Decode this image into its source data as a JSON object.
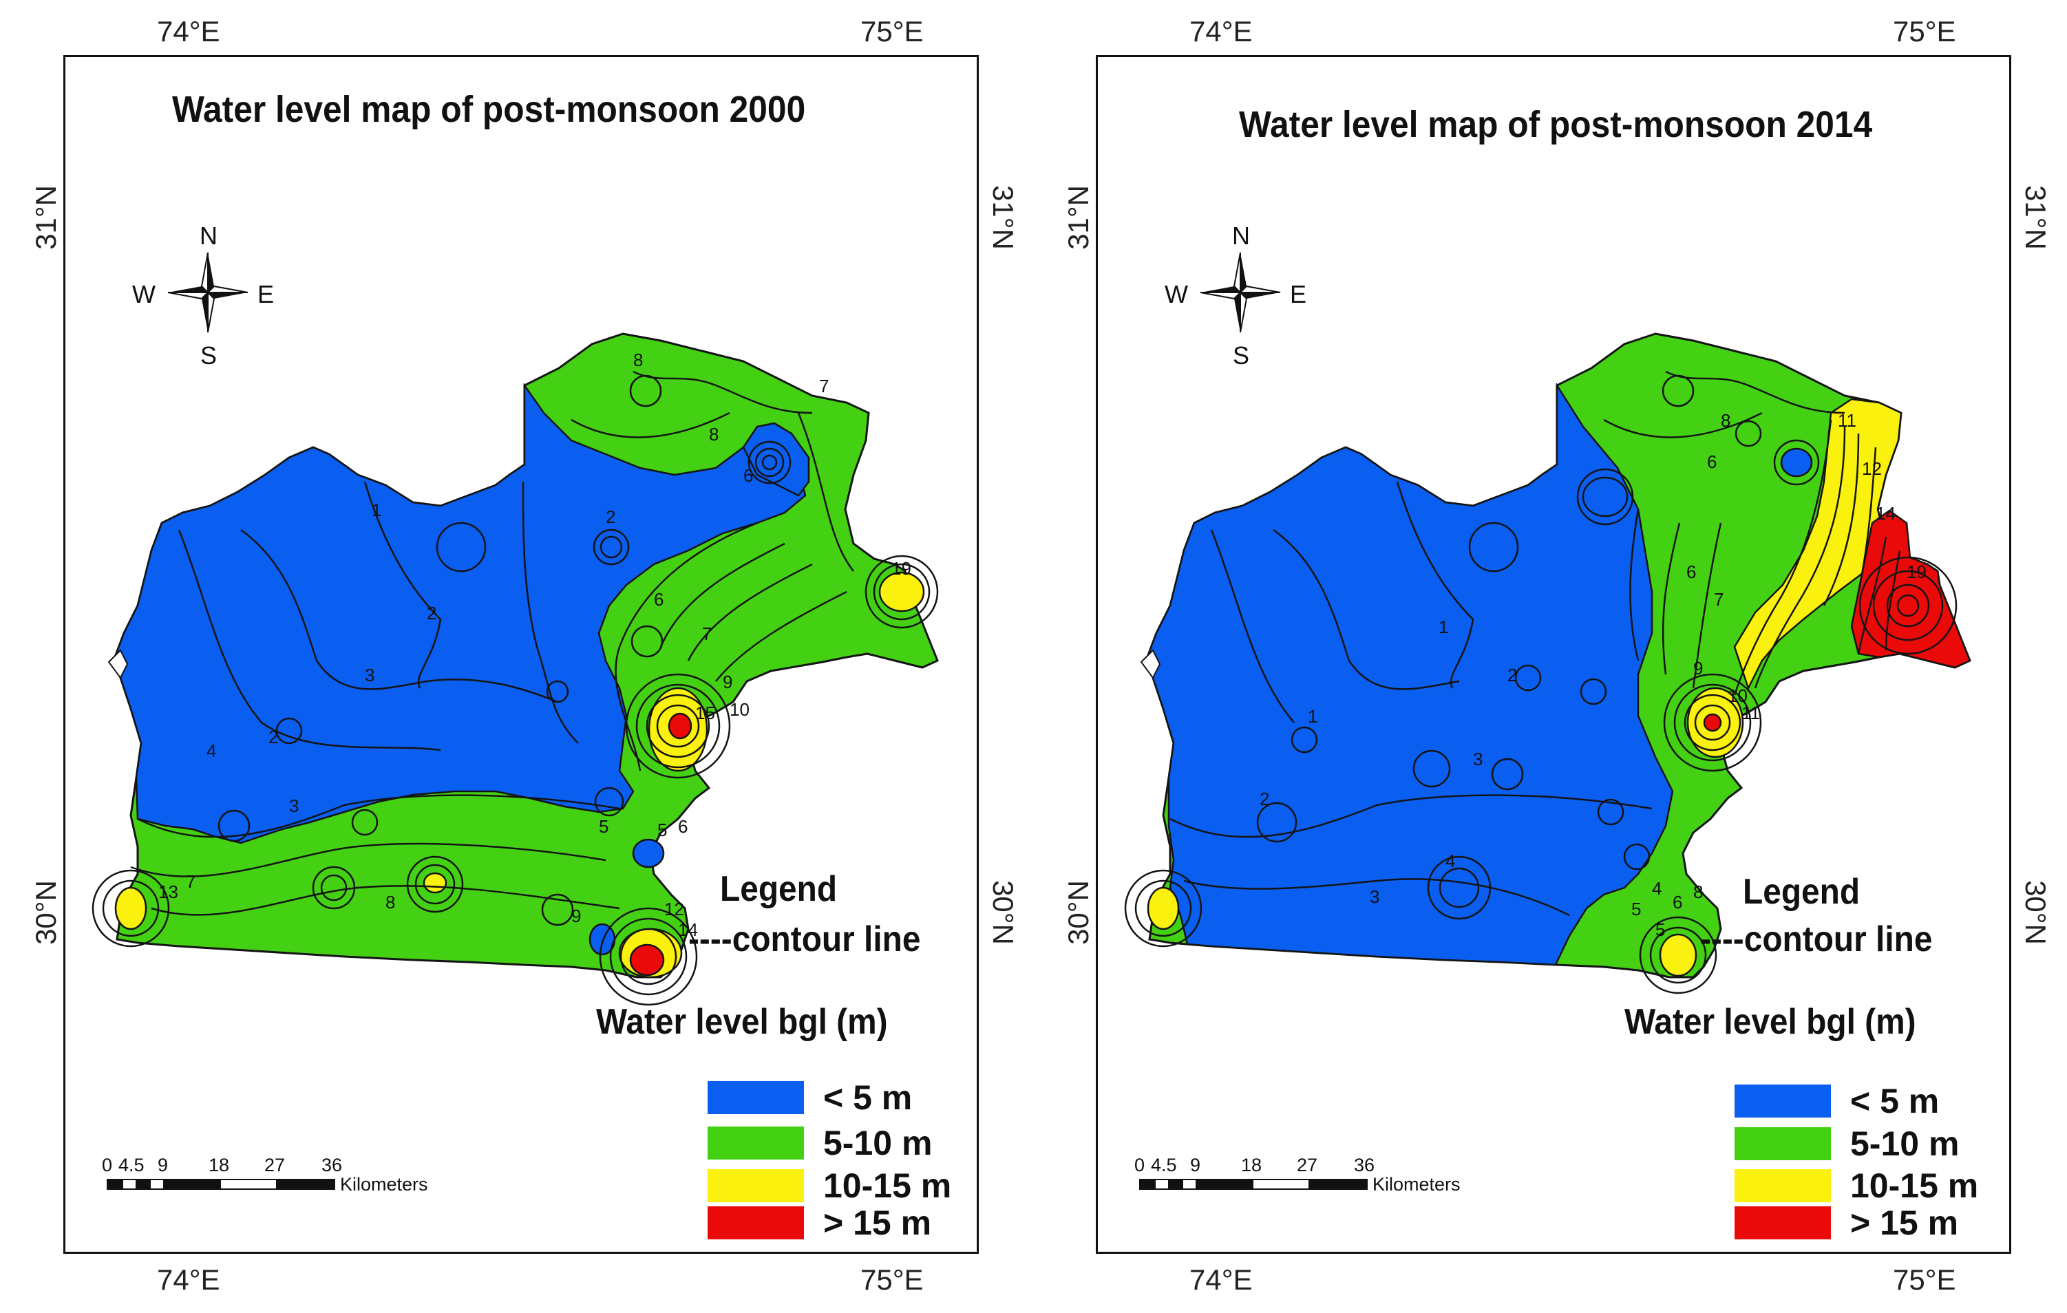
{
  "colors": {
    "lt5": "#0a5ef0",
    "5to10": "#44d114",
    "10to15": "#fbf10e",
    "gt15": "#ea0a0a",
    "contour": "#141414",
    "frame": "#111111"
  },
  "axis": {
    "lon_left": "74°E",
    "lon_right": "75°E",
    "lat_top": "31°N",
    "lat_bottom": "30°N"
  },
  "compass": {
    "n": "N",
    "s": "S",
    "e": "E",
    "w": "W"
  },
  "scale_bar": {
    "ticks": [
      "0",
      "4.5",
      "9",
      "18",
      "27",
      "36"
    ],
    "unit": "Kilometers"
  },
  "legend": {
    "heading": "Legend",
    "contour_label": "----contour line",
    "classes_title": "Water level bgl (m)",
    "classes": [
      {
        "label": "< 5 m",
        "color_key": "lt5"
      },
      {
        "label": "5-10 m",
        "color_key": "5to10"
      },
      {
        "label": "10-15 m",
        "color_key": "10to15"
      },
      {
        "label": "> 15 m",
        "color_key": "gt15"
      }
    ]
  },
  "maps": [
    {
      "title": "Water level map of post-monsoon 2000",
      "contour_labels": [
        "8",
        "7",
        "8",
        "6",
        "2",
        "1",
        "2",
        "3",
        "4",
        "3",
        "2",
        "5",
        "6",
        "7",
        "9",
        "10",
        "15",
        "19",
        "5",
        "6",
        "7",
        "8",
        "9",
        "12",
        "14",
        "13"
      ]
    },
    {
      "title": "Water level map of post-monsoon 2014",
      "contour_labels": [
        "8",
        "6",
        "11",
        "12",
        "14",
        "19",
        "1",
        "2",
        "3",
        "4",
        "3",
        "2",
        "1",
        "5",
        "6",
        "7",
        "9",
        "10",
        "11",
        "4",
        "5",
        "6",
        "8"
      ]
    }
  ]
}
